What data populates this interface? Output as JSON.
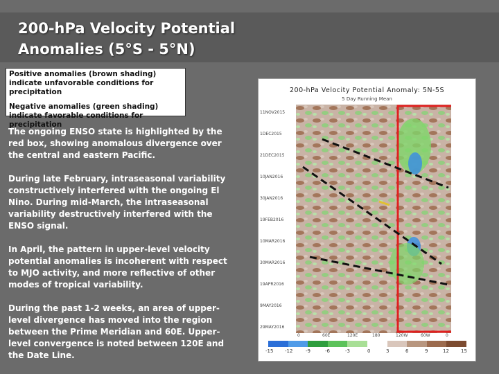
{
  "title": {
    "line1": "200-hPa Velocity Potential",
    "line2": "Anomalies (5°S - 5°N)"
  },
  "legend_note": {
    "positive": "Positive anomalies (brown shading) indicate unfavorable conditions for precipitation",
    "negative": "Negative anomalies (green shading) indicate favorable conditions for precipitation"
  },
  "paragraphs": [
    "The ongoing ENSO state is highlighted by the red box, showing anomalous divergence over the central and eastern Pacific.",
    "During late February, intraseasonal variability constructively interfered with the ongoing El Nino.  During mid-March, the intraseasonal variability destructively interfered with the ENSO signal.",
    "In April, the pattern in upper-level velocity potential anomalies is incoherent with respect to MJO activity, and more reflective of other modes of tropical variability.",
    "During the past 1-2 weeks, an area of upper-level divergence has moved into the region between  the Prime Meridian and 60E. Upper-level convergence is noted between 120E and the Date Line."
  ],
  "figure": {
    "title": "200-hPa Velocity Potential Anomaly: 5N-5S",
    "subtitle": "5 Day Running Mean",
    "dates": [
      "11NOV2015",
      "1DEC2015",
      "21DEC2015",
      "10JAN2016",
      "30JAN2016",
      "19FEB2016",
      "10MAR2016",
      "30MAR2016",
      "19APR2016",
      "9MAY2016",
      "29MAY2016"
    ],
    "longitudes": [
      "0",
      "60E",
      "120E",
      "180",
      "120W",
      "60W",
      "0"
    ],
    "colorbar_labels": [
      "-15",
      "-12",
      "-9",
      "-6",
      "-3",
      "0",
      "3",
      "6",
      "9",
      "12",
      "15"
    ],
    "colors": {
      "background": "#6b6b6b",
      "highlight_box": "#e02020",
      "positive": "#9c6b4e",
      "negative": "#4caf50"
    }
  }
}
